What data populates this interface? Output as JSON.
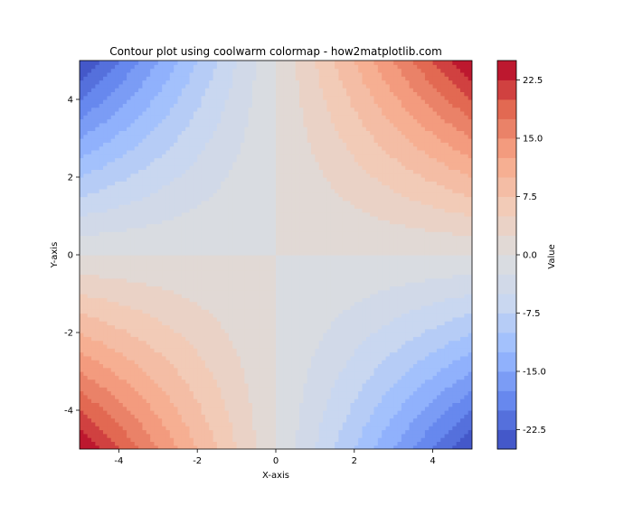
{
  "chart_data": {
    "type": "heatmap",
    "subtype": "filled-contour",
    "title": "Contour plot using coolwarm colormap - how2matplotlib.com",
    "xlabel": "X-axis",
    "ylabel": "Y-axis",
    "function": "z = x * y",
    "xlim": [
      -5,
      5
    ],
    "ylim": [
      -5,
      5
    ],
    "x_ticks": [
      -4,
      -2,
      0,
      2,
      4
    ],
    "x_tick_labels": [
      "-4",
      "-2",
      "0",
      "2",
      "4"
    ],
    "y_ticks": [
      -4,
      -2,
      0,
      2,
      4
    ],
    "y_tick_labels": [
      "-4",
      "-2",
      "0",
      "2",
      "4"
    ],
    "levels": [
      -25,
      -22.5,
      -20,
      -17.5,
      -15,
      -12.5,
      -10,
      -7.5,
      -5,
      -2.5,
      0,
      2.5,
      5,
      7.5,
      10,
      12.5,
      15,
      17.5,
      20,
      22.5,
      25
    ],
    "colormap": "coolwarm",
    "colormap_stops": [
      "#3b4cc0",
      "#6788ee",
      "#9abbff",
      "#c9d7f0",
      "#dddddd",
      "#f2cbb7",
      "#f7a889",
      "#e26952",
      "#b40426"
    ],
    "colorbar": {
      "label": "Value",
      "range": [
        -25,
        25
      ],
      "ticks": [
        22.5,
        15.0,
        7.5,
        0.0,
        -7.5,
        -15.0,
        -22.5
      ],
      "tick_labels": [
        "22.5",
        "15.0",
        "7.5",
        "0.0",
        "-7.5",
        "-15.0",
        "-22.5"
      ]
    },
    "grid": false
  }
}
